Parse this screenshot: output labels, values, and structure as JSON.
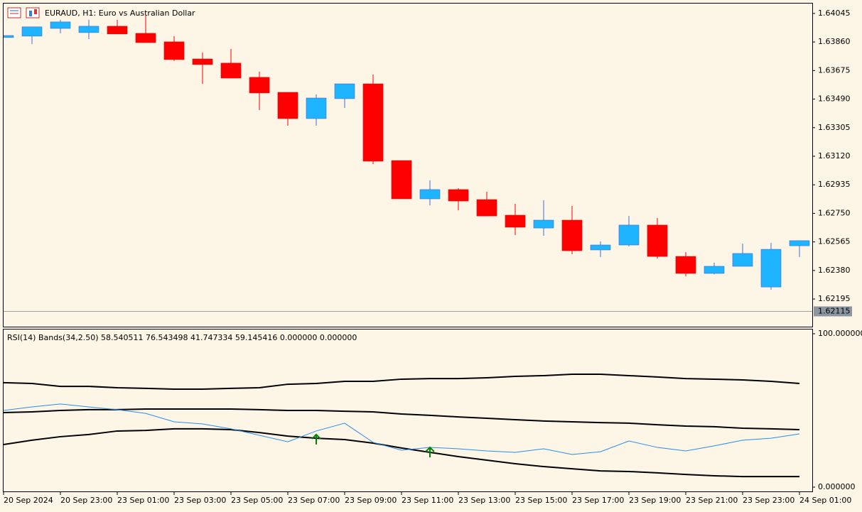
{
  "chart_data": [
    {
      "type": "candlestick",
      "title": "EURAUD, H1:  Euro vs Australian Dollar",
      "categories": [
        "20 Sep 2024",
        null,
        "20 Sep 23:00",
        null,
        "23 Sep 01:00",
        null,
        "23 Sep 03:00",
        null,
        "23 Sep 05:00",
        null,
        "23 Sep 07:00",
        null,
        "23 Sep 09:00",
        null,
        "23 Sep 11:00",
        null,
        "23 Sep 13:00",
        null,
        "23 Sep 15:00",
        null,
        "23 Sep 17:00",
        null,
        "23 Sep 19:00",
        null,
        "23 Sep 21:00",
        null,
        "23 Sep 23:00",
        null,
        "24 Sep 01:00"
      ],
      "open": [
        1.63889,
        1.63898,
        1.63948,
        1.63921,
        1.63962,
        1.63916,
        1.63861,
        1.6375,
        1.63723,
        1.63631,
        1.63534,
        1.63364,
        1.63493,
        1.63589,
        1.63092,
        1.62844,
        1.62904,
        1.62839,
        1.62738,
        1.62655,
        1.62706,
        1.62513,
        1.62545,
        1.62674,
        1.62471,
        1.62361,
        1.62407,
        1.62273,
        1.6254
      ],
      "high": [
        1.63902,
        1.63958,
        1.64004,
        1.64004,
        1.64004,
        1.64031,
        1.63898,
        1.63792,
        1.63815,
        1.63668,
        1.63534,
        1.6352,
        1.63589,
        1.63649,
        1.63092,
        1.62964,
        1.62913,
        1.6289,
        1.62812,
        1.62835,
        1.62798,
        1.62568,
        1.62733,
        1.6272,
        1.62499,
        1.6243,
        1.62554,
        1.62559,
        1.62573
      ],
      "low": [
        1.63889,
        1.63847,
        1.63916,
        1.63879,
        1.63912,
        1.63856,
        1.63737,
        1.63589,
        1.63626,
        1.63419,
        1.63318,
        1.63318,
        1.63433,
        1.63069,
        1.62844,
        1.62802,
        1.6277,
        1.62733,
        1.62609,
        1.62605,
        1.62485,
        1.62467,
        1.62536,
        1.62457,
        1.62342,
        1.62356,
        1.62407,
        1.62255,
        1.62467
      ],
      "close": [
        1.63902,
        1.63958,
        1.6399,
        1.63962,
        1.63912,
        1.63856,
        1.63746,
        1.63714,
        1.63626,
        1.6353,
        1.63364,
        1.63497,
        1.63589,
        1.63088,
        1.62844,
        1.62904,
        1.6283,
        1.62733,
        1.6266,
        1.62706,
        1.62508,
        1.62545,
        1.62674,
        1.62471,
        1.62361,
        1.62407,
        1.6249,
        1.62517,
        1.62573
      ],
      "up_color": "#1eb4ff",
      "up_wick_color": "#3a6fd8",
      "down_color": "#ff0000",
      "ylim": [
        1.62016,
        1.64109
      ],
      "yticks": [
        1.64045,
        {
          "value": 1.6386,
          "label": "1.63860"
        },
        1.63675,
        {
          "value": 1.6349,
          "label": "1.63490"
        },
        1.63305,
        {
          "value": 1.6312,
          "label": "1.63120"
        },
        1.62935,
        {
          "value": 1.6275,
          "label": "1.62750"
        },
        1.62565,
        {
          "value": 1.6238,
          "label": "1.62380"
        },
        1.62195
      ],
      "price_line": 1.62115
    },
    {
      "type": "line",
      "title": "RSI(14) Bands(34,2.50) 58.540511 76.543498 41.747334 59.145416 0.000000 0.000000",
      "ylim": [
        -2.78,
        102.78
      ],
      "yticks": [
        {
          "value": 100,
          "label": "100.000000"
        },
        {
          "value": 0,
          "label": "0.000000"
        }
      ],
      "series": [
        {
          "color": "#000000",
          "values": [
            68.1,
            67.6,
            65.7,
            65.7,
            64.8,
            64.4,
            63.9,
            63.9,
            64.4,
            64.8,
            67.1,
            67.6,
            69.0,
            69.0,
            70.4,
            70.8,
            70.8,
            71.3,
            72.2,
            72.7,
            73.6,
            73.6,
            72.7,
            71.8,
            70.8,
            70.4,
            69.9,
            69.0,
            67.6
          ]
        },
        {
          "color": "#000000",
          "values": [
            48.6,
            49.1,
            50.0,
            50.5,
            50.5,
            50.9,
            50.9,
            50.9,
            50.9,
            50.5,
            50.0,
            50.0,
            49.5,
            49.1,
            47.7,
            46.8,
            45.8,
            44.9,
            44.0,
            43.1,
            42.6,
            42.1,
            41.7,
            40.7,
            39.8,
            39.4,
            38.4,
            38.0,
            37.5
          ]
        },
        {
          "color": "#000000",
          "values": [
            27.8,
            30.6,
            32.9,
            34.3,
            36.6,
            37.0,
            38.0,
            38.0,
            37.5,
            35.6,
            33.3,
            31.9,
            31.0,
            28.7,
            25.5,
            22.7,
            19.9,
            17.6,
            15.3,
            13.4,
            12.0,
            10.6,
            10.2,
            9.3,
            8.3,
            7.4,
            6.9,
            6.9,
            6.9
          ]
        },
        {
          "color": "#2a8cf0",
          "values": [
            50.0,
            52.3,
            54.2,
            52.3,
            50.5,
            48.1,
            42.6,
            41.2,
            38.0,
            33.8,
            29.6,
            36.6,
            41.7,
            29.2,
            24.1,
            25.9,
            25.0,
            23.6,
            22.7,
            25.0,
            21.3,
            23.1,
            30.1,
            25.9,
            23.6,
            26.9,
            30.6,
            31.9,
            34.7
          ]
        }
      ],
      "arrows": {
        "color": "#008000",
        "values": [
          null,
          null,
          null,
          null,
          null,
          null,
          null,
          null,
          null,
          null,
          null,
          34.3,
          null,
          null,
          null,
          25.9,
          null,
          null,
          null,
          null,
          null,
          null,
          null,
          null,
          null,
          null,
          null,
          null,
          null
        ]
      }
    }
  ]
}
